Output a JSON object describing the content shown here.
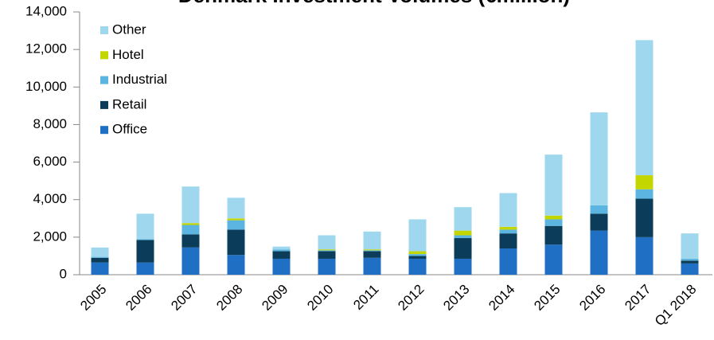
{
  "chart_data": {
    "type": "stacked_bar",
    "title": "Denmark Investment Volumes (€million)",
    "categories": [
      "2005",
      "2006",
      "2007",
      "2008",
      "2009",
      "2010",
      "2011",
      "2012",
      "2013",
      "2014",
      "2015",
      "2016",
      "2017",
      "Q1 2018"
    ],
    "series": [
      {
        "name": "Office",
        "color": "#1f6fc5",
        "values": [
          650,
          650,
          1450,
          1050,
          850,
          850,
          900,
          850,
          850,
          1400,
          1600,
          2350,
          2000,
          600
        ]
      },
      {
        "name": "Retail",
        "color": "#0b3d5a",
        "values": [
          250,
          1200,
          700,
          1350,
          400,
          400,
          350,
          150,
          1100,
          800,
          1000,
          900,
          2050,
          150
        ]
      },
      {
        "name": "Industrial",
        "color": "#5bb5e0",
        "values": [
          50,
          50,
          500,
          500,
          100,
          50,
          50,
          100,
          150,
          200,
          350,
          450,
          500,
          100
        ]
      },
      {
        "name": "Hotel",
        "color": "#c4d600",
        "values": [
          0,
          0,
          100,
          100,
          0,
          50,
          50,
          150,
          250,
          150,
          200,
          0,
          750,
          0
        ]
      },
      {
        "name": "Other",
        "color": "#9fd8ee",
        "values": [
          500,
          1350,
          1950,
          1100,
          150,
          750,
          950,
          1700,
          1250,
          1800,
          3250,
          4950,
          7200,
          1350
        ]
      }
    ],
    "ylim": [
      0,
      14000
    ],
    "yticks": [
      0,
      {
        "value": 2000,
        "label": "2,000"
      },
      {
        "value": 4000,
        "label": "4,000"
      },
      {
        "value": 6000,
        "label": "6,000"
      },
      {
        "value": 8000,
        "label": "8,000"
      },
      {
        "value": 10000,
        "label": "10,000"
      },
      {
        "value": 12000,
        "label": "12,000"
      },
      {
        "value": 14000,
        "label": "14,000"
      }
    ],
    "legend": "upper left"
  }
}
